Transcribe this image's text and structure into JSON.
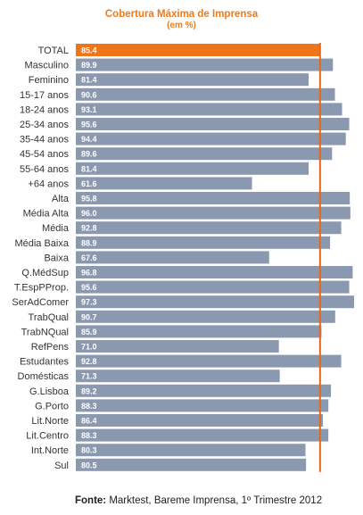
{
  "chart_data": {
    "type": "bar",
    "orientation": "horizontal",
    "title": "Cobertura Máxima de Imprensa",
    "subtitle": "(em %)",
    "categories": [
      "TOTAL",
      "Masculino",
      "Feminino",
      "15-17 anos",
      "18-24 anos",
      "25-34 anos",
      "35-44 anos",
      "45-54 anos",
      "55-64 anos",
      "+64 anos",
      "Alta",
      "Média Alta",
      "Média",
      "Média Baixa",
      "Baixa",
      "Q.MédSup",
      "T.EspPProp.",
      "SerAdComer",
      "TrabQual",
      "TrabNQual",
      "RefPens",
      "Estudantes",
      "Domésticas",
      "G.Lisboa",
      "G.Porto",
      "Lit.Norte",
      "Lit.Centro",
      "Int.Norte",
      "Sul"
    ],
    "values": [
      85.4,
      89.9,
      81.4,
      90.6,
      93.1,
      95.6,
      94.4,
      89.6,
      81.4,
      61.6,
      95.8,
      96.0,
      92.8,
      88.9,
      67.6,
      96.8,
      95.6,
      97.3,
      90.7,
      85.9,
      71.0,
      92.8,
      71.3,
      89.2,
      88.3,
      86.4,
      88.3,
      80.3,
      80.5
    ],
    "value_labels": [
      "85.4",
      "89.9",
      "81.4",
      "90.6",
      "93.1",
      "95.6",
      "94.4",
      "89.6",
      "81.4",
      "61.6",
      "95.8",
      "96.0",
      "92.8",
      "88.9",
      "67.6",
      "96.8",
      "95.6",
      "97.3",
      "90.7",
      "85.9",
      "71.0",
      "92.8",
      "71.3",
      "89.2",
      "88.3",
      "86.4",
      "88.3",
      "80.3",
      "80.5"
    ],
    "reference_line": 85.4,
    "highlight_index": 0,
    "xlim": [
      0,
      97.3
    ],
    "grid": false,
    "colors": {
      "bar": "#8a98b0",
      "highlight": "#f07418",
      "reference_line": "#e8681a",
      "title": "#ee7a1a"
    }
  },
  "source": {
    "label": "Fonte:",
    "text": " Marktest, Bareme Imprensa, 1º Trimestre 2012"
  }
}
